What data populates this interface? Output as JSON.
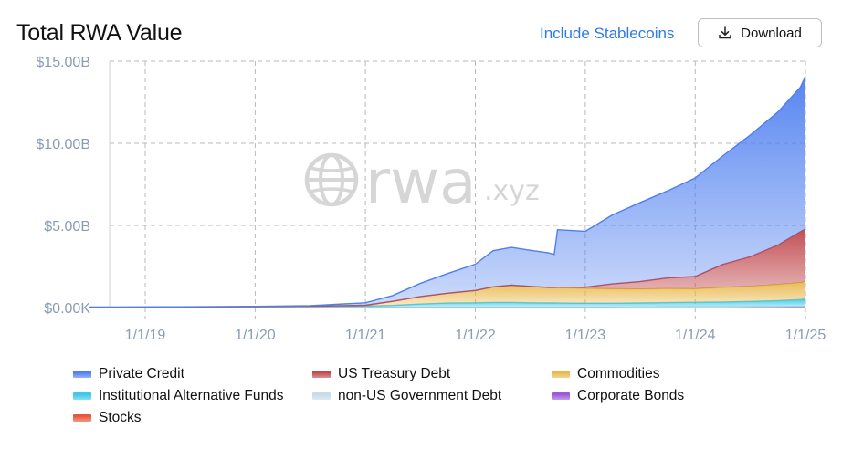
{
  "header": {
    "title": "Total RWA Value",
    "stablecoins_label": "Include Stablecoins",
    "download_label": "Download"
  },
  "watermark": {
    "text": "rwa",
    "suffix": ".xyz"
  },
  "chart_data": {
    "type": "area",
    "stacked": true,
    "title": "Total RWA Value",
    "y_ticks": [
      "$0.00K",
      "$5.00B",
      "$10.00B",
      "$15.00B"
    ],
    "ylim": [
      0,
      15
    ],
    "x_ticks": [
      "1/1/19",
      "1/1/20",
      "1/1/21",
      "1/1/22",
      "1/1/23",
      "1/1/24",
      "1/1/25"
    ],
    "grid": true,
    "legend_position": "bottom",
    "x": [
      "2018-07-01",
      "2019-01-01",
      "2019-07-01",
      "2020-01-01",
      "2020-07-01",
      "2021-01-01",
      "2021-04-01",
      "2021-07-01",
      "2021-10-01",
      "2022-01-01",
      "2022-03-01",
      "2022-05-01",
      "2022-07-01",
      "2022-09-01",
      "2022-09-20",
      "2022-10-01",
      "2023-01-01",
      "2023-04-01",
      "2023-07-01",
      "2023-10-01",
      "2024-01-01",
      "2024-04-01",
      "2024-07-01",
      "2024-10-01",
      "2024-12-15",
      "2025-01-01"
    ],
    "series": [
      {
        "name": "Stocks",
        "color": "#e8573b",
        "values": [
          0,
          0,
          0,
          0,
          0,
          0.01,
          0.01,
          0.01,
          0.01,
          0.01,
          0.01,
          0.01,
          0.01,
          0.01,
          0.01,
          0.01,
          0.01,
          0.01,
          0.01,
          0.02,
          0.02,
          0.02,
          0.02,
          0.03,
          0.03,
          0.03
        ]
      },
      {
        "name": "Corporate Bonds",
        "color": "#9b59d9",
        "values": [
          0,
          0,
          0,
          0,
          0,
          0,
          0,
          0,
          0,
          0,
          0,
          0,
          0,
          0,
          0,
          0,
          0,
          0,
          0,
          0,
          0,
          0,
          0,
          0,
          0,
          0
        ]
      },
      {
        "name": "non-US Government Debt",
        "color": "#c7dbe8",
        "values": [
          0,
          0,
          0,
          0,
          0,
          0,
          0,
          0,
          0,
          0,
          0,
          0,
          0,
          0,
          0,
          0,
          0,
          0,
          0.01,
          0.01,
          0.02,
          0.02,
          0.03,
          0.03,
          0.04,
          0.04
        ]
      },
      {
        "name": "Institutional Alternative Funds",
        "color": "#3cc8e6",
        "values": [
          0.02,
          0.03,
          0.04,
          0.05,
          0.07,
          0.08,
          0.12,
          0.2,
          0.26,
          0.28,
          0.3,
          0.3,
          0.28,
          0.27,
          0.27,
          0.26,
          0.25,
          0.25,
          0.26,
          0.27,
          0.28,
          0.3,
          0.32,
          0.36,
          0.42,
          0.46
        ]
      },
      {
        "name": "Commodities",
        "color": "#e8b84a",
        "values": [
          0,
          0,
          0,
          0,
          0,
          0.05,
          0.25,
          0.45,
          0.6,
          0.75,
          0.95,
          1.05,
          1.0,
          0.95,
          0.95,
          0.95,
          0.9,
          0.88,
          0.85,
          0.85,
          0.82,
          0.88,
          0.92,
          0.98,
          1.02,
          1.05
        ]
      },
      {
        "name": "US Treasury Debt",
        "color": "#c0474b",
        "values": [
          0,
          0,
          0,
          0,
          0,
          0,
          0,
          0,
          0,
          0,
          0,
          0,
          0,
          0,
          0,
          0.02,
          0.08,
          0.3,
          0.45,
          0.65,
          0.75,
          1.4,
          1.8,
          2.4,
          3.1,
          3.2
        ]
      },
      {
        "name": "Private Credit",
        "color": "#4e7ff0",
        "values": [
          0,
          0,
          0.01,
          0.02,
          0.04,
          0.15,
          0.35,
          0.8,
          1.2,
          1.6,
          2.2,
          2.3,
          2.2,
          2.1,
          2.0,
          3.5,
          3.4,
          4.2,
          4.8,
          5.3,
          6.0,
          6.6,
          7.4,
          8.1,
          8.8,
          9.3
        ]
      }
    ]
  },
  "legend": [
    {
      "label": "Private Credit",
      "color": "#4e7ff0"
    },
    {
      "label": "US Treasury Debt",
      "color": "#c0474b"
    },
    {
      "label": "Commodities",
      "color": "#e8b84a"
    },
    {
      "label": "Institutional Alternative Funds",
      "color": "#3cc8e6"
    },
    {
      "label": "non-US Government Debt",
      "color": "#c7dbe8"
    },
    {
      "label": "Corporate Bonds",
      "color": "#9b59d9"
    },
    {
      "label": "Stocks",
      "color": "#e8573b"
    }
  ]
}
